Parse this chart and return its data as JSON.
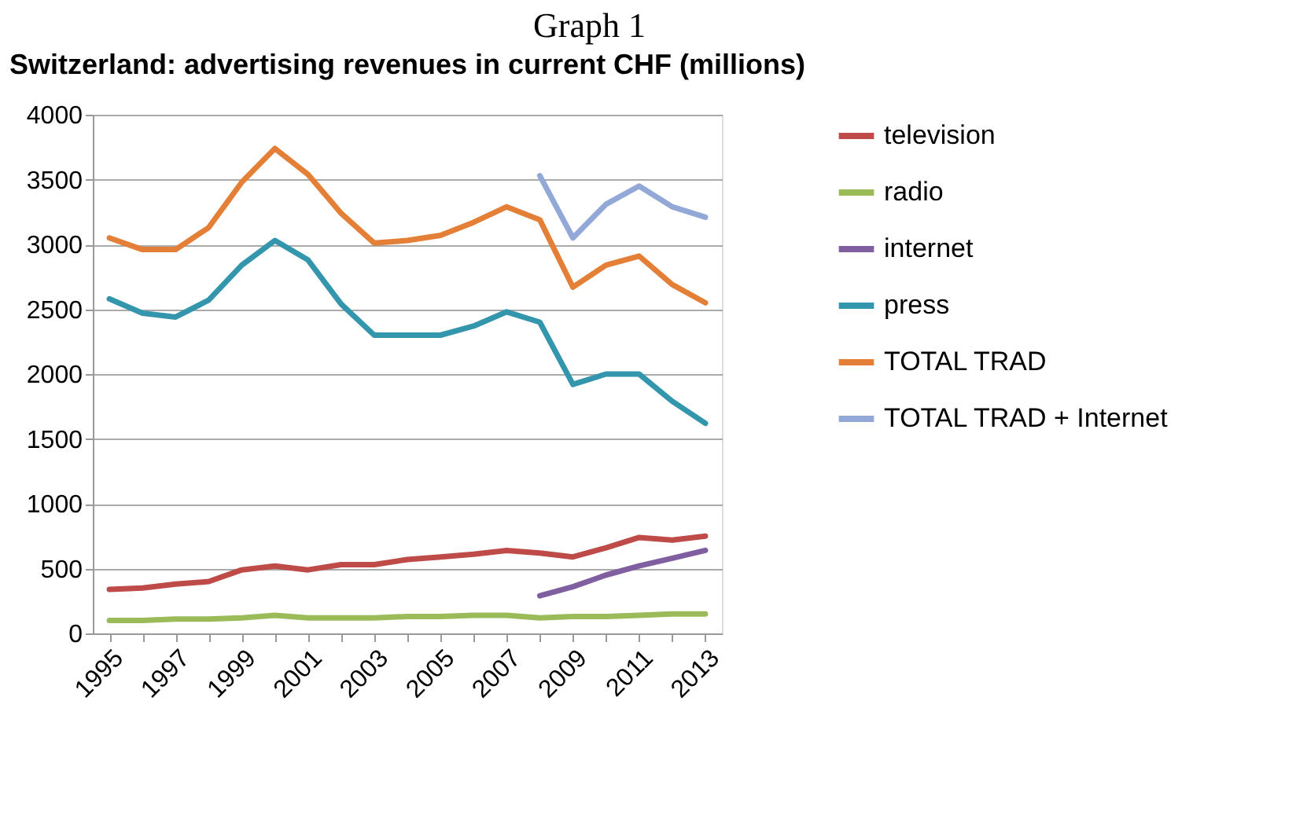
{
  "chart_data": {
    "type": "line",
    "title": "Switzerland: advertising revenues in current CHF (millions)",
    "annotations": [
      "Graph 1"
    ],
    "categories": [
      "1995",
      null,
      "1997",
      null,
      "1999",
      null,
      "2001",
      null,
      "2003",
      null,
      "2005",
      null,
      "2007",
      null,
      "2009",
      null,
      "2011",
      null,
      "2013"
    ],
    "series": [
      {
        "name": "television",
        "color": "#be4b48",
        "values": [
          340,
          350,
          380,
          400,
          490,
          520,
          490,
          530,
          530,
          570,
          590,
          610,
          640,
          620,
          590,
          660,
          740,
          720,
          750
        ]
      },
      {
        "name": "radio",
        "color": "#9bbb59",
        "values": [
          100,
          100,
          110,
          110,
          120,
          140,
          120,
          120,
          120,
          130,
          130,
          140,
          140,
          120,
          130,
          130,
          140,
          150,
          150
        ]
      },
      {
        "name": "internet",
        "color": "#7f5fa0",
        "values": [
          null,
          null,
          null,
          null,
          null,
          null,
          null,
          null,
          null,
          null,
          null,
          null,
          null,
          290,
          360,
          450,
          520,
          580,
          640
        ]
      },
      {
        "name": "press",
        "color": "#3396ad",
        "values": [
          2580,
          2470,
          2440,
          2570,
          2840,
          3030,
          2880,
          2540,
          2300,
          2300,
          2300,
          2370,
          2480,
          2400,
          1920,
          2000,
          2000,
          1790,
          1620
        ]
      },
      {
        "name": "TOTAL TRAD",
        "color": "#e47f37",
        "values": [
          3050,
          2960,
          2960,
          3130,
          3480,
          3740,
          3540,
          3240,
          3010,
          3030,
          3070,
          3170,
          3290,
          3190,
          2670,
          2840,
          2910,
          2690,
          2550
        ]
      },
      {
        "name": "TOTAL TRAD + Internet",
        "color": "#92a8d6",
        "values": [
          null,
          null,
          null,
          null,
          null,
          null,
          null,
          null,
          null,
          null,
          null,
          null,
          null,
          3530,
          3050,
          3310,
          3450,
          3290,
          3210
        ]
      }
    ],
    "ylim": [
      0,
      4000
    ],
    "yticks": [
      0,
      500,
      1000,
      1500,
      2000,
      2500,
      3000,
      3500,
      4000
    ],
    "grid": "y",
    "legend": "right"
  }
}
